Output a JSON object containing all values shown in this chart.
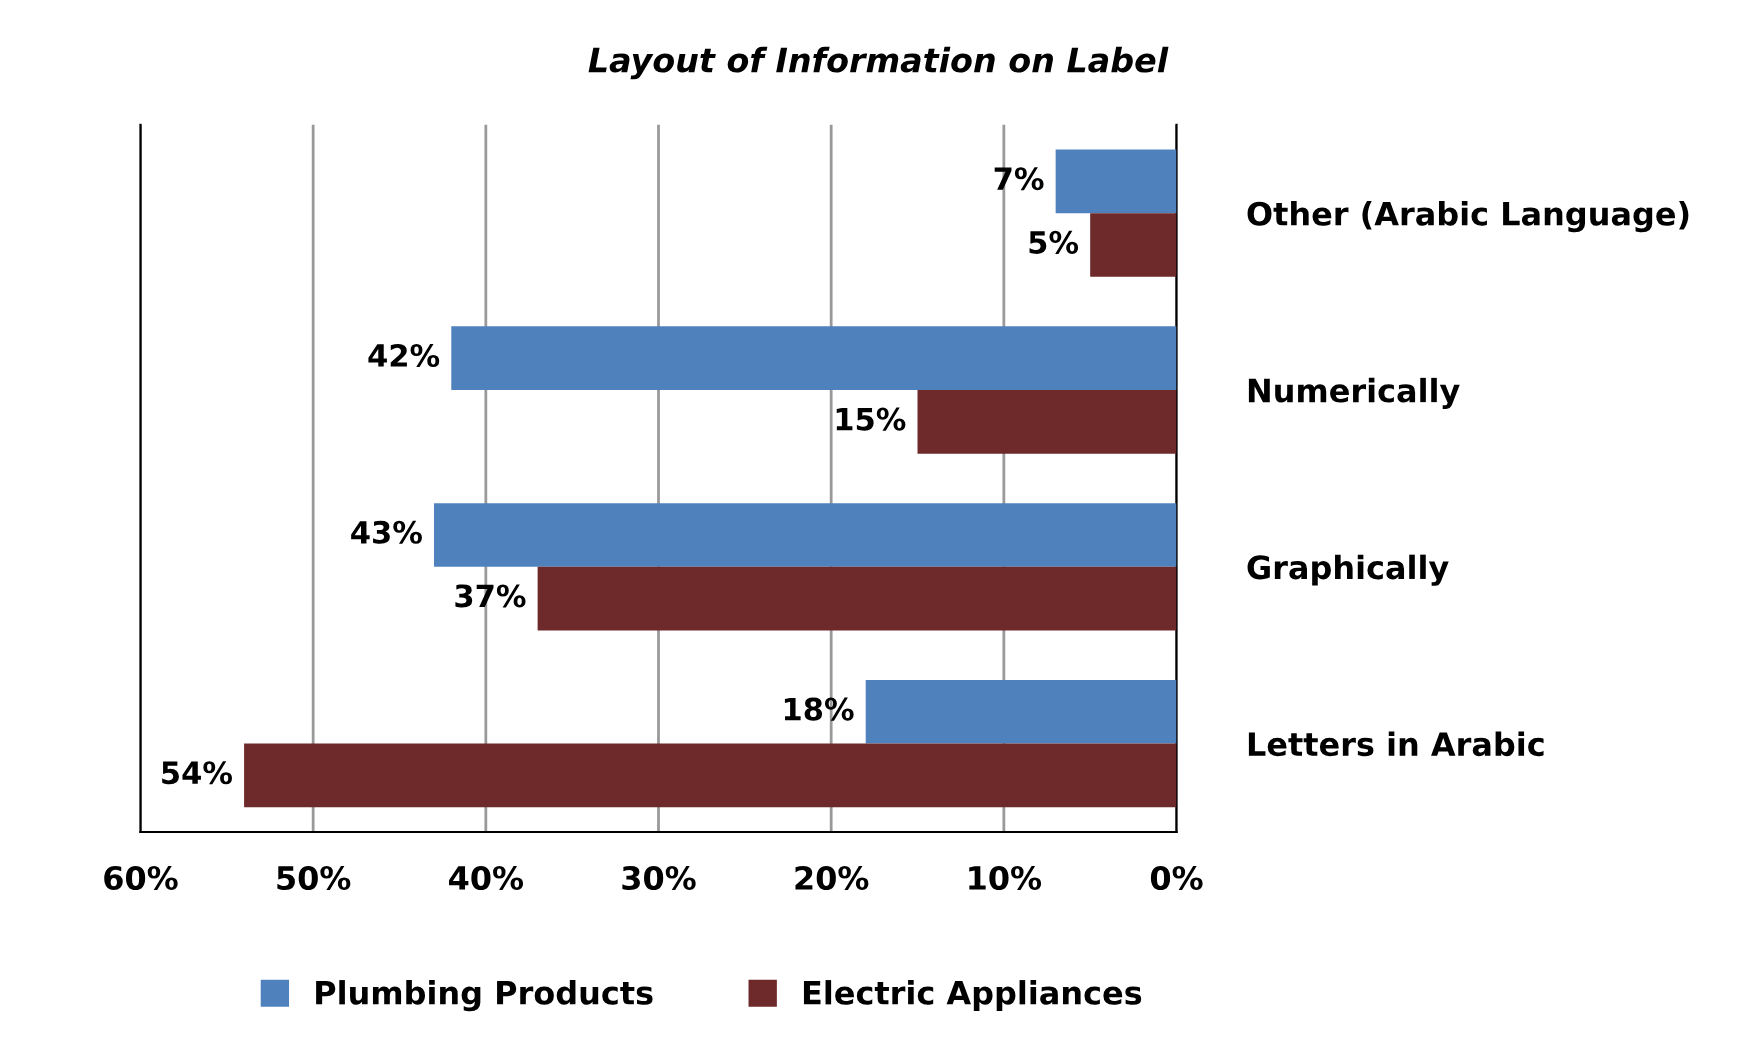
{
  "chart_data": {
    "type": "bar",
    "orientation": "horizontal",
    "title": "Layout of Information on Label",
    "categories": [
      "Other (Arabic Language)",
      "Numerically",
      "Graphically",
      "Letters in Arabic"
    ],
    "series": [
      {
        "name": "Plumbing Products",
        "color": "#4f81bd",
        "values": [
          7,
          42,
          43,
          18
        ],
        "value_labels": [
          "7%",
          "42%",
          "43%",
          "18%"
        ]
      },
      {
        "name": "Electric Appliances",
        "color": "#6e2a2a",
        "values": [
          5,
          15,
          37,
          54
        ],
        "value_labels": [
          "5%",
          "15%",
          "37%",
          "54%"
        ]
      }
    ],
    "xlim": [
      60,
      0
    ],
    "xticks": [
      {
        "value": 60,
        "label": "60%"
      },
      {
        "value": 50,
        "label": "50%"
      },
      {
        "value": 40,
        "label": "40%"
      },
      {
        "value": 30,
        "label": "30%"
      },
      {
        "value": 20,
        "label": "20%"
      },
      {
        "value": 10,
        "label": "10%"
      },
      {
        "value": 0,
        "label": "0%"
      }
    ],
    "grid": "x",
    "legend": "bottom"
  }
}
